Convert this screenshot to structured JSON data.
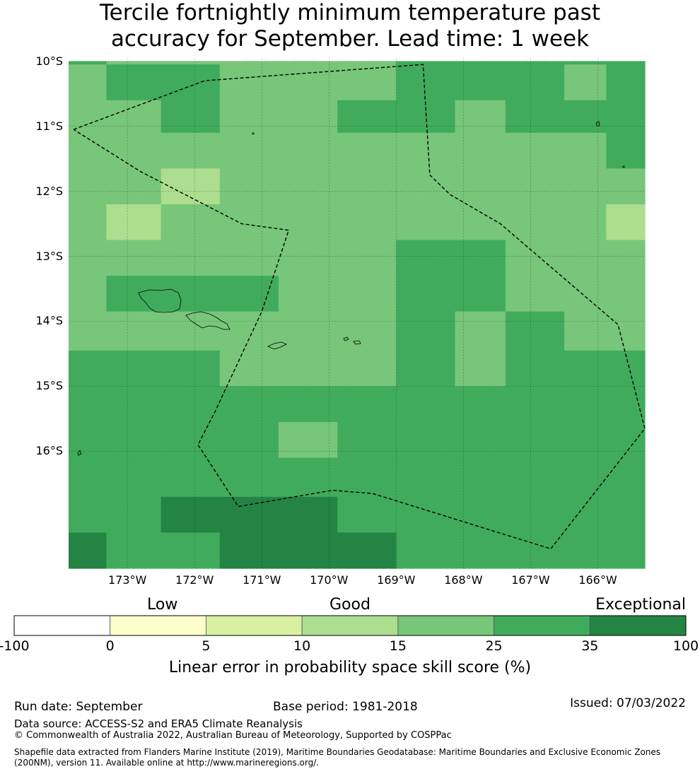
{
  "title": {
    "line1": "Tercile fortnightly minimum temperature past",
    "line2": "accuracy for September. Lead time: 1 week"
  },
  "map": {
    "lat_labels": [
      "10°S",
      "11°S",
      "12°S",
      "13°S",
      "14°S",
      "15°S",
      "16°S"
    ],
    "lon_labels": [
      "173°W",
      "172°W",
      "171°W",
      "170°W",
      "169°W",
      "168°W",
      "167°W",
      "166°W"
    ],
    "grid": {
      "columns_lon": [
        -173.875,
        -173.3125,
        -172.5,
        -171.625,
        -170.75,
        -169.875,
        -169.0,
        -168.125,
        -167.375,
        -166.5,
        -165.875,
        -165.3
      ],
      "rows_lat": [
        -10.0,
        -10.05,
        -10.6,
        -11.1,
        -11.65,
        -12.2,
        -12.75,
        -13.3,
        -13.85,
        -14.45,
        -15.0,
        -15.55,
        -16.1,
        -16.7,
        -17.25,
        -17.8
      ],
      "skill_class_by_row": [
        [
          5,
          4,
          4,
          4,
          4,
          4,
          5,
          5,
          5,
          5,
          5
        ],
        [
          4,
          5,
          5,
          4,
          4,
          4,
          5,
          5,
          5,
          4,
          5
        ],
        [
          4,
          4,
          5,
          4,
          4,
          5,
          5,
          4,
          5,
          5,
          5
        ],
        [
          4,
          4,
          4,
          4,
          4,
          4,
          4,
          4,
          4,
          4,
          5
        ],
        [
          4,
          4,
          3,
          4,
          4,
          4,
          4,
          4,
          4,
          4,
          4
        ],
        [
          4,
          3,
          4,
          4,
          4,
          4,
          4,
          4,
          4,
          4,
          3
        ],
        [
          4,
          4,
          4,
          4,
          4,
          4,
          5,
          5,
          4,
          4,
          4
        ],
        [
          4,
          5,
          5,
          5,
          4,
          4,
          5,
          5,
          4,
          4,
          4
        ],
        [
          4,
          4,
          4,
          4,
          4,
          4,
          5,
          4,
          5,
          4,
          4
        ],
        [
          5,
          5,
          5,
          4,
          4,
          4,
          5,
          4,
          5,
          5,
          5
        ],
        [
          5,
          5,
          5,
          5,
          5,
          5,
          5,
          5,
          5,
          5,
          5
        ],
        [
          5,
          5,
          5,
          5,
          4,
          5,
          5,
          5,
          5,
          5,
          5
        ],
        [
          5,
          5,
          5,
          5,
          5,
          5,
          5,
          5,
          5,
          5,
          5
        ],
        [
          5,
          5,
          6,
          6,
          6,
          5,
          5,
          5,
          5,
          5,
          5
        ],
        [
          6,
          5,
          5,
          6,
          6,
          6,
          5,
          5,
          5,
          5,
          5
        ]
      ]
    },
    "eez_boundary_lonlat": [
      [
        -173.8,
        -11.05
      ],
      [
        -171.85,
        -10.3
      ],
      [
        -168.6,
        -10.05
      ],
      [
        -168.5,
        -11.75
      ],
      [
        -168.2,
        -12.05
      ],
      [
        -167.45,
        -12.5
      ],
      [
        -165.7,
        -14.05
      ],
      [
        -165.3,
        -15.65
      ],
      [
        -166.7,
        -17.5
      ],
      [
        -169.35,
        -16.65
      ],
      [
        -169.95,
        -16.6
      ],
      [
        -171.35,
        -16.85
      ],
      [
        -171.95,
        -15.9
      ],
      [
        -171.7,
        -15.4
      ],
      [
        -171.0,
        -13.85
      ],
      [
        -170.6,
        -12.6
      ],
      [
        -171.3,
        -12.5
      ],
      [
        -172.8,
        -11.7
      ],
      [
        -173.8,
        -11.05
      ]
    ]
  },
  "colorbar": {
    "category_labels": [
      "Low",
      "Good",
      "Exceptional"
    ],
    "tick_labels": [
      "-100",
      "0",
      "5",
      "10",
      "15",
      "25",
      "35",
      "100"
    ],
    "bin_colors": [
      "#ffffff",
      "#ffffcc",
      "#d9f0a3",
      "#addd8e",
      "#78c679",
      "#41ab5d",
      "#238443"
    ],
    "label": "Linear error in probability space skill score (%)"
  },
  "footer": {
    "run_date": "Run date: September",
    "base_period": "Base period: 1981-2018",
    "issued": "Issued: 07/03/2022",
    "data_source": "Data source: ACCESS-S2 and ERA5 Climate Reanalysis",
    "copyright": "© Commonwealth of Australia 2022, Australian Bureau of Meteorology, Supported by COSPPac",
    "shapefile_line1": "Shapefile data extracted from Flanders Marine Institute (2019), Maritime Boundaries Geodatabase: Maritime Boundaries and Exclusive Economic Zones",
    "shapefile_line2": "(200NM), version 11. Available online at http://www.marineregions.org/."
  }
}
